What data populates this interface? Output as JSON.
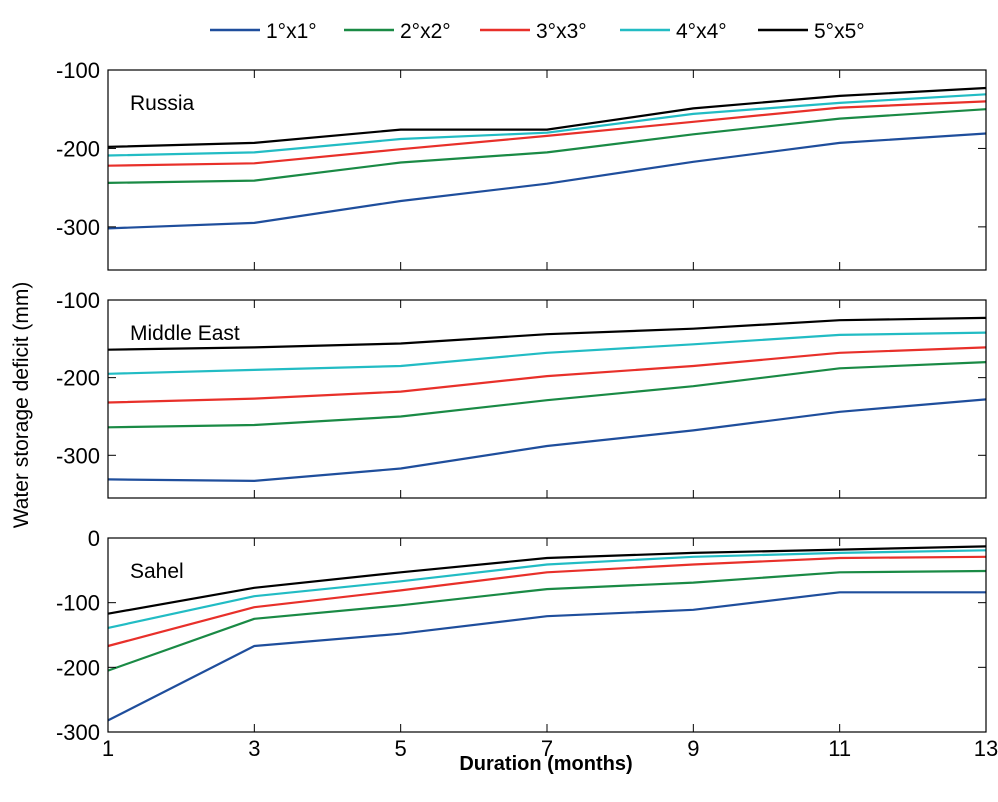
{
  "chart_data": {
    "type": "line",
    "xlabel": "Duration (months)",
    "ylabel": "Water storage deficit (mm)",
    "x": [
      1,
      3,
      5,
      7,
      9,
      11,
      13
    ],
    "xlim": [
      1,
      13
    ],
    "xticks": [
      "1",
      "3",
      "5",
      "7",
      "9",
      "11",
      "13"
    ],
    "legend": {
      "placement": "top",
      "entries": [
        {
          "name": "1°x1°",
          "color": "#1f4e9c"
        },
        {
          "name": "2°x2°",
          "color": "#1a8a45"
        },
        {
          "name": "3°x3°",
          "color": "#e8302a"
        },
        {
          "name": "4°x4°",
          "color": "#22bcc4"
        },
        {
          "name": "5°x5°",
          "color": "#000000"
        }
      ]
    },
    "panels": [
      {
        "title": "Russia",
        "ylim": [
          -355,
          -100
        ],
        "yticks": [
          -100,
          -200,
          -300
        ],
        "ytick_labels": [
          "-100",
          "-200",
          "-300"
        ],
        "series": [
          {
            "name": "1°x1°",
            "color": "#1f4e9c",
            "values": [
              -302,
              -295,
              -267,
              -245,
              -217,
              -193,
              -181
            ]
          },
          {
            "name": "2°x2°",
            "color": "#1a8a45",
            "values": [
              -244,
              -241,
              -218,
              -205,
              -182,
              -162,
              -150
            ]
          },
          {
            "name": "3°x3°",
            "color": "#e8302a",
            "values": [
              -222,
              -219,
              -201,
              -184,
              -166,
              -148,
              -140
            ]
          },
          {
            "name": "4°x4°",
            "color": "#22bcc4",
            "values": [
              -209,
              -205,
              -188,
              -180,
              -156,
              -142,
              -131
            ]
          },
          {
            "name": "5°x5°",
            "color": "#000000",
            "values": [
              -198,
              -193,
              -176,
              -176,
              -149,
              -133,
              -123
            ]
          }
        ]
      },
      {
        "title": "Middle East",
        "ylim": [
          -355,
          -100
        ],
        "yticks": [
          -100,
          -200,
          -300
        ],
        "ytick_labels": [
          "-100",
          "-200",
          "-300"
        ],
        "series": [
          {
            "name": "1°x1°",
            "color": "#1f4e9c",
            "values": [
              -331,
              -333,
              -317,
              -288,
              -268,
              -244,
              -228
            ]
          },
          {
            "name": "2°x2°",
            "color": "#1a8a45",
            "values": [
              -264,
              -261,
              -250,
              -229,
              -211,
              -188,
              -180
            ]
          },
          {
            "name": "3°x3°",
            "color": "#e8302a",
            "values": [
              -232,
              -227,
              -218,
              -198,
              -185,
              -168,
              -161
            ]
          },
          {
            "name": "4°x4°",
            "color": "#22bcc4",
            "values": [
              -195,
              -190,
              -185,
              -168,
              -157,
              -145,
              -142
            ]
          },
          {
            "name": "5°x5°",
            "color": "#000000",
            "values": [
              -164,
              -161,
              -156,
              -144,
              -137,
              -126,
              -123
            ]
          }
        ]
      },
      {
        "title": "Sahel",
        "ylim": [
          -300,
          0
        ],
        "yticks": [
          0,
          -100,
          -200,
          -300
        ],
        "ytick_labels": [
          "0",
          "-100",
          "-200",
          "-300"
        ],
        "series": [
          {
            "name": "1°x1°",
            "color": "#1f4e9c",
            "values": [
              -282,
              -167,
              -148,
              -121,
              -111,
              -84,
              -84
            ]
          },
          {
            "name": "2°x2°",
            "color": "#1a8a45",
            "values": [
              -205,
              -125,
              -104,
              -79,
              -69,
              -53,
              -51
            ]
          },
          {
            "name": "3°x3°",
            "color": "#e8302a",
            "values": [
              -167,
              -107,
              -81,
              -53,
              -41,
              -31,
              -29
            ]
          },
          {
            "name": "4°x4°",
            "color": "#22bcc4",
            "values": [
              -139,
              -90,
              -67,
              -41,
              -29,
              -23,
              -19
            ]
          },
          {
            "name": "5°x5°",
            "color": "#000000",
            "values": [
              -117,
              -77,
              -53,
              -31,
              -23,
              -18,
              -13
            ]
          }
        ]
      }
    ]
  }
}
